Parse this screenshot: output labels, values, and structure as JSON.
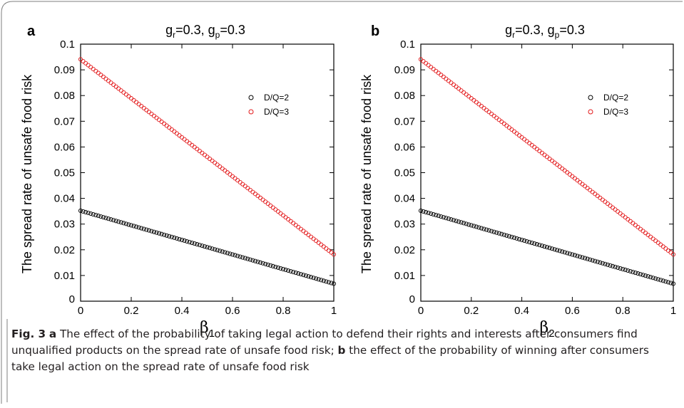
{
  "figure": {
    "caption": {
      "label": "Fig. 3",
      "part_a_letter": "a",
      "part_a_text": "The effect of the probability of taking legal action to defend their rights and interests after consumers find unqualified products on the spread rate of unsafe food risk;",
      "part_b_letter": "b",
      "part_b_text": "the effect of the probability of winning after consumers take legal action on the spread rate of unsafe food risk"
    }
  },
  "chart_data": [
    {
      "type": "scatter",
      "panel_label": "a",
      "title": "g_r=0.3, g_p=0.3",
      "title_parts": [
        "g",
        "r",
        "=0.3, g",
        "p",
        "=0.3"
      ],
      "xlabel": "β",
      "xlabel_sub": "1",
      "ylabel": "The spread rate of unsafe food risk",
      "xlim": [
        0,
        1
      ],
      "ylim": [
        0,
        0.1
      ],
      "xticks": [
        "0",
        "0.2",
        "0.4",
        "0.6",
        "0.8",
        "1"
      ],
      "yticks": [
        "0",
        "0.01",
        "0.02",
        "0.03",
        "0.04",
        "0.05",
        "0.06",
        "0.07",
        "0.08",
        "0.09",
        "0.1"
      ],
      "legend_position": "right",
      "grid": false,
      "series": [
        {
          "name": "D/Q=2",
          "color": "#000000",
          "x_range": [
            0,
            1
          ],
          "points": 101,
          "y_start": 0.0352,
          "y_end": 0.0068
        },
        {
          "name": "D/Q=3",
          "color": "#e31a1c",
          "x_range": [
            0,
            1
          ],
          "points": 101,
          "y_start": 0.0941,
          "y_end": 0.0182
        }
      ]
    },
    {
      "type": "scatter",
      "panel_label": "b",
      "title": "g_r=0.3, g_p=0.3",
      "title_parts": [
        "g",
        "r",
        "=0.3, g",
        "p",
        "=0.3"
      ],
      "xlabel": "β",
      "xlabel_sub": "2",
      "ylabel": "The spread rate of unsafe food risk",
      "xlim": [
        0,
        1
      ],
      "ylim": [
        0,
        0.1
      ],
      "xticks": [
        "0",
        "0.2",
        "0.4",
        "0.6",
        "0.8",
        "1"
      ],
      "yticks": [
        "0",
        "0.01",
        "0.02",
        "0.03",
        "0.04",
        "0.05",
        "0.06",
        "0.07",
        "0.08",
        "0.09",
        "0.1"
      ],
      "legend_position": "right",
      "grid": false,
      "series": [
        {
          "name": "D/Q=2",
          "color": "#000000",
          "x_range": [
            0,
            1
          ],
          "points": 101,
          "y_start": 0.0352,
          "y_end": 0.0068
        },
        {
          "name": "D/Q=3",
          "color": "#e31a1c",
          "x_range": [
            0,
            1
          ],
          "points": 101,
          "y_start": 0.0941,
          "y_end": 0.0182
        }
      ]
    }
  ]
}
